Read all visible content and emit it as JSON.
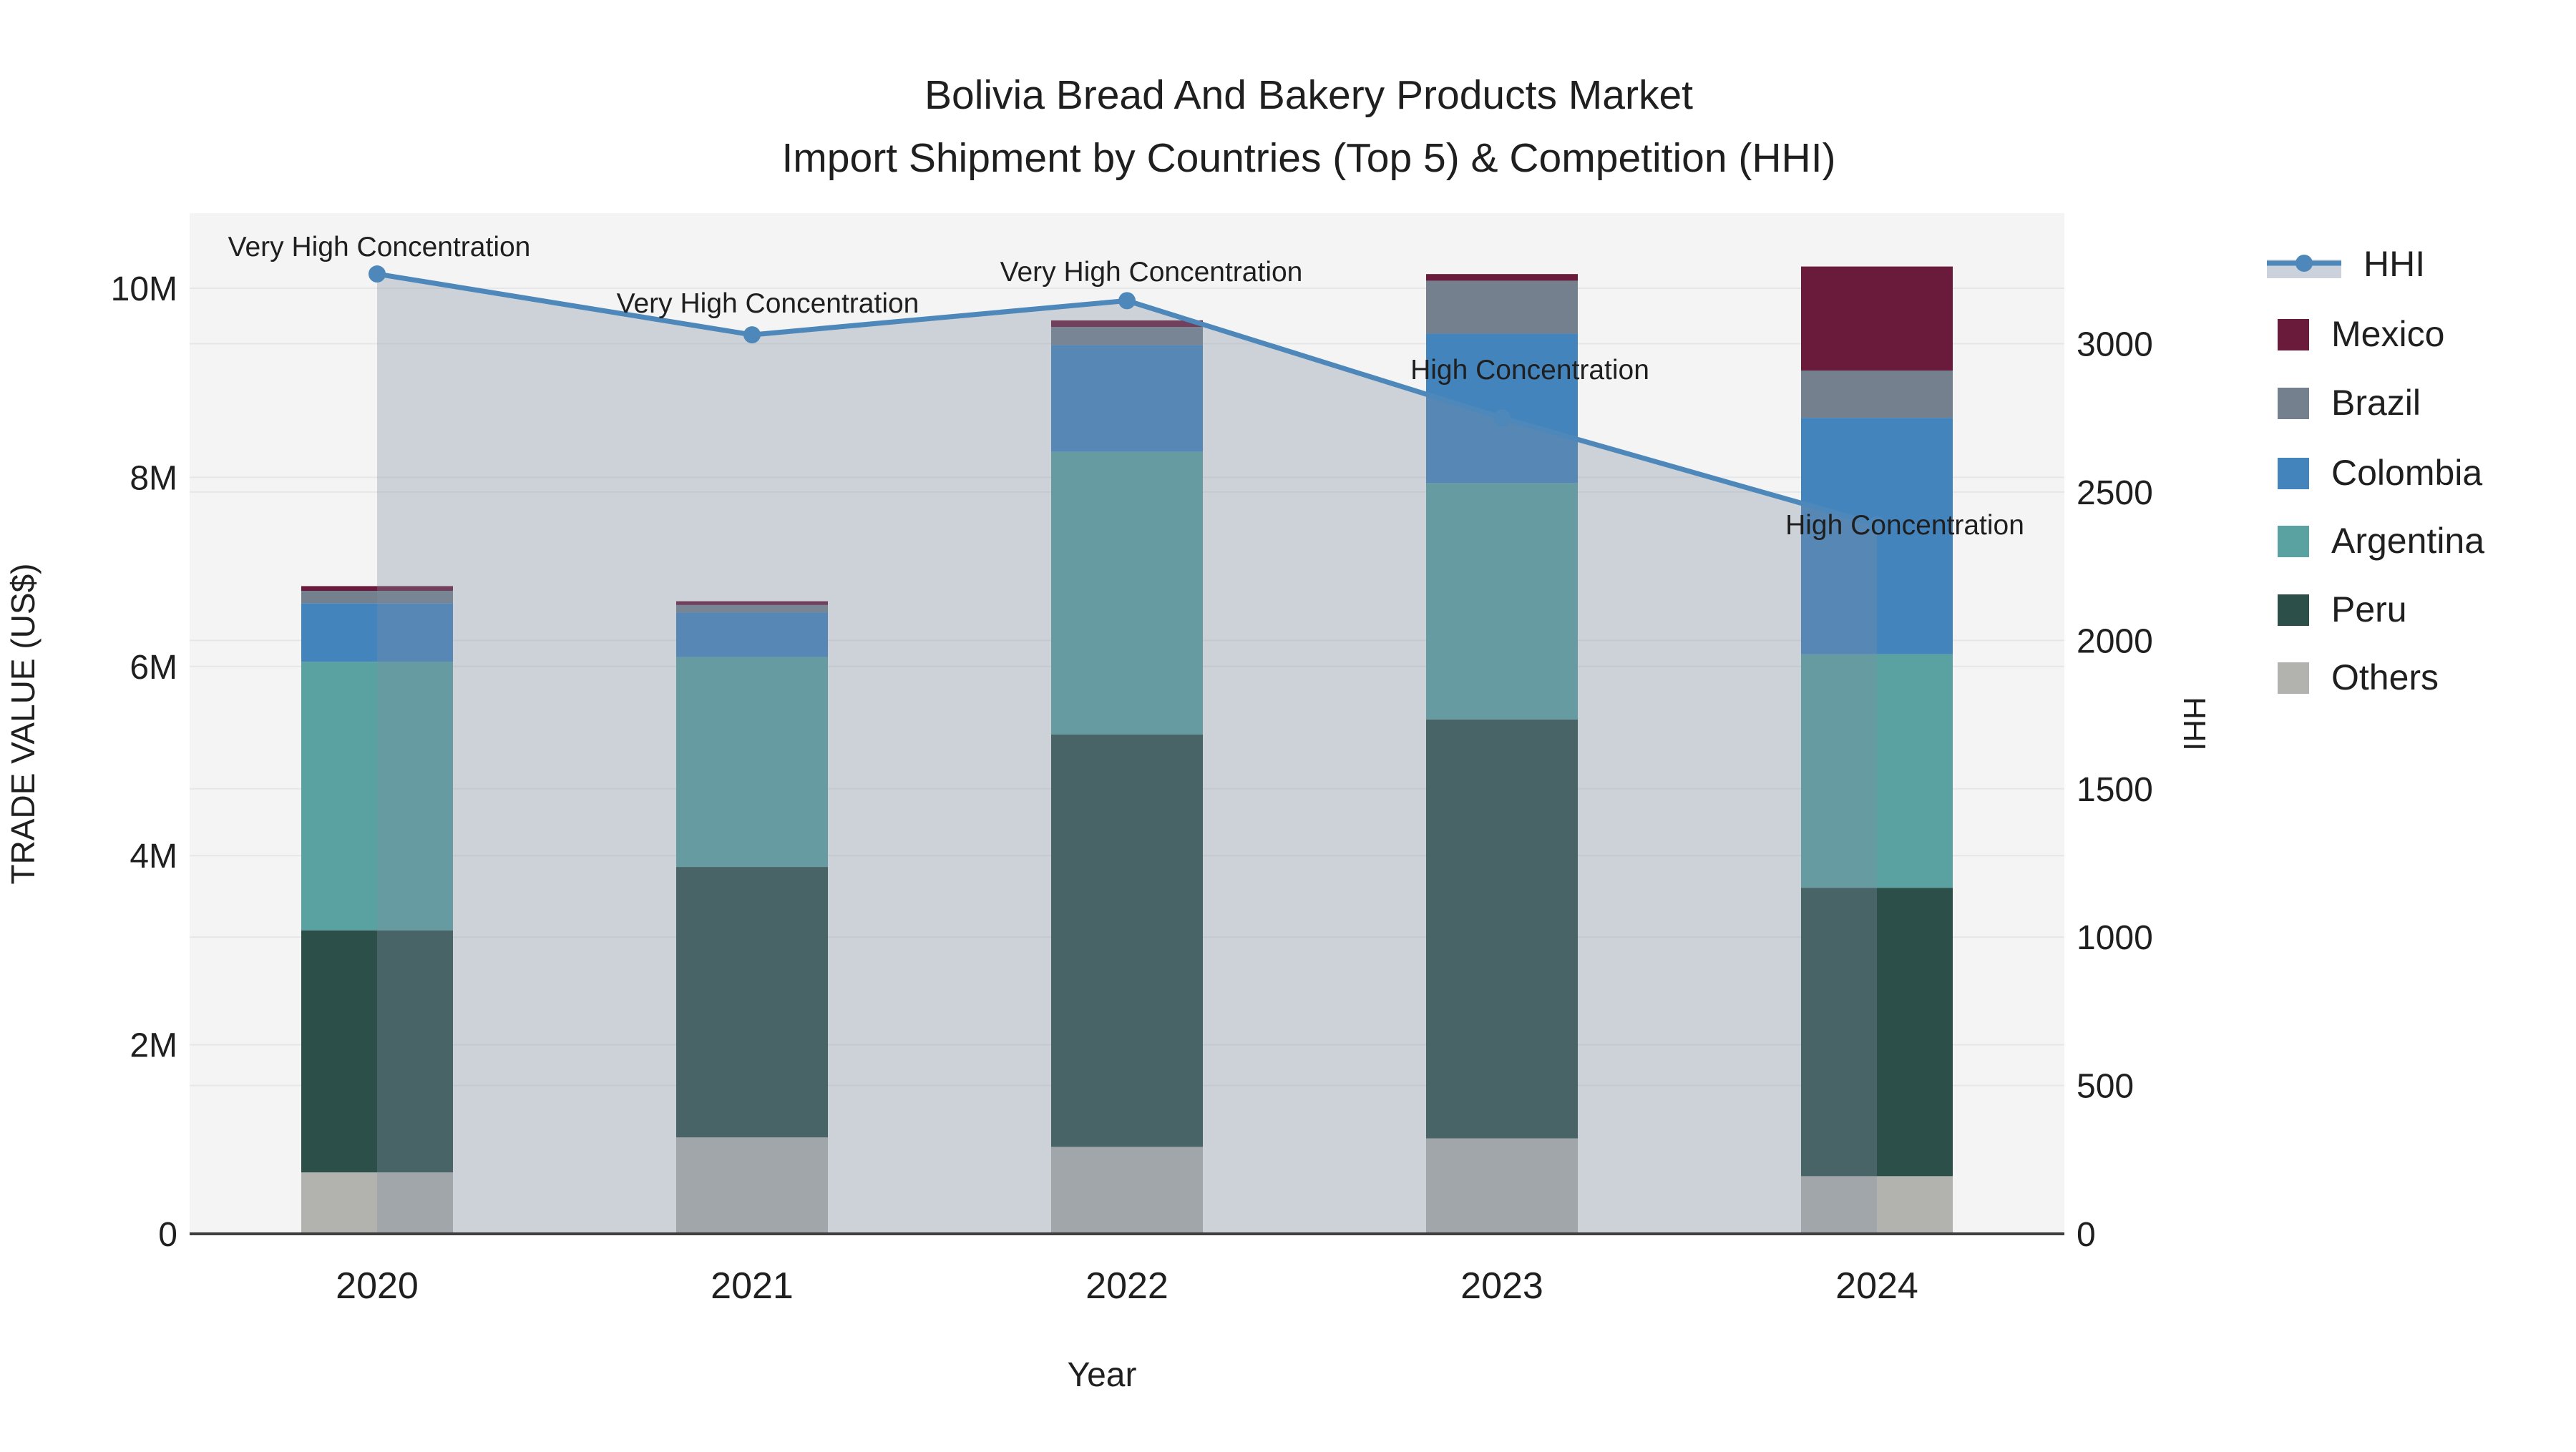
{
  "title": {
    "line1": "Bolivia Bread And Bakery Products Market",
    "line2": "Import Shipment by Countries (Top 5) & Competition (HHI)"
  },
  "axes": {
    "x": {
      "title": "Year",
      "categories": [
        "2020",
        "2021",
        "2022",
        "2023",
        "2024"
      ]
    },
    "y_left": {
      "title": "TRADE VALUE (US$)",
      "tick_labels": [
        "0",
        "2M",
        "4M",
        "6M",
        "8M",
        "10M"
      ],
      "tick_values_musd": [
        0,
        2,
        4,
        6,
        8,
        10
      ],
      "range_musd": [
        0,
        10.8
      ]
    },
    "y_right": {
      "title": "HHI",
      "tick_labels": [
        "0",
        "500",
        "1000",
        "1500",
        "2000",
        "2500",
        "3000"
      ],
      "tick_values": [
        0,
        500,
        1000,
        1500,
        2000,
        2500,
        3000
      ],
      "range": [
        0,
        3440
      ]
    }
  },
  "legend": {
    "items": [
      {
        "key": "hhi",
        "label": "HHI",
        "type": "line"
      },
      {
        "key": "mexico",
        "label": "Mexico",
        "type": "swatch"
      },
      {
        "key": "brazil",
        "label": "Brazil",
        "type": "swatch"
      },
      {
        "key": "colombia",
        "label": "Colombia",
        "type": "swatch"
      },
      {
        "key": "argentina",
        "label": "Argentina",
        "type": "swatch"
      },
      {
        "key": "peru",
        "label": "Peru",
        "type": "swatch"
      },
      {
        "key": "others",
        "label": "Others",
        "type": "swatch"
      }
    ]
  },
  "colors": {
    "mexico": "#6a1a3b",
    "brazil": "#74808e",
    "colombia": "#4484bd",
    "argentina": "#5aa2a1",
    "peru": "#2d4f49",
    "others": "#b2b2ae",
    "hhi_line": "#4e88ba",
    "hhi_area": "rgba(128,144,164,0.33)",
    "legend_band": "#ccd2db",
    "plot_bg": "#f4f4f4",
    "grid": "rgba(0,0,0,0.055)",
    "axis_line": "#3f3f3f",
    "text": "#1f1f1f"
  },
  "annotations": [
    {
      "category": "2020",
      "text": "Very High Concentration"
    },
    {
      "category": "2021",
      "text": "Very High Concentration"
    },
    {
      "category": "2022",
      "text": "Very High Concentration"
    },
    {
      "category": "2023",
      "text": "High Concentration"
    },
    {
      "category": "2024",
      "text": "High Concentration"
    }
  ],
  "chart_data": {
    "type": "bar",
    "subtype": "stacked-bars-with-line",
    "unit": "US$ millions (left axis), HHI index (right axis)",
    "categories": [
      "2020",
      "2021",
      "2022",
      "2023",
      "2024"
    ],
    "series": [
      {
        "name": "Others",
        "color_key": "others",
        "axis": "left",
        "values_musd": [
          0.65,
          1.02,
          0.92,
          1.01,
          0.61
        ]
      },
      {
        "name": "Peru",
        "color_key": "peru",
        "axis": "left",
        "values_musd": [
          2.56,
          2.86,
          4.36,
          4.43,
          3.05
        ]
      },
      {
        "name": "Argentina",
        "color_key": "argentina",
        "axis": "left",
        "values_musd": [
          2.84,
          2.22,
          2.99,
          2.5,
          2.47
        ]
      },
      {
        "name": "Colombia",
        "color_key": "colombia",
        "axis": "left",
        "values_musd": [
          0.62,
          0.47,
          1.13,
          1.58,
          2.5
        ]
      },
      {
        "name": "Brazil",
        "color_key": "brazil",
        "axis": "left",
        "values_musd": [
          0.13,
          0.08,
          0.19,
          0.56,
          0.5
        ]
      },
      {
        "name": "Mexico",
        "color_key": "mexico",
        "axis": "left",
        "values_musd": [
          0.05,
          0.04,
          0.07,
          0.07,
          1.1
        ]
      }
    ],
    "totals_musd": [
      6.85,
      6.69,
      9.66,
      10.15,
      10.23
    ],
    "line_series": {
      "name": "HHI",
      "axis": "right",
      "values": [
        3235,
        3030,
        3145,
        2750,
        2390
      ],
      "area_fill": true
    },
    "legend_position": "right",
    "grid": true
  }
}
